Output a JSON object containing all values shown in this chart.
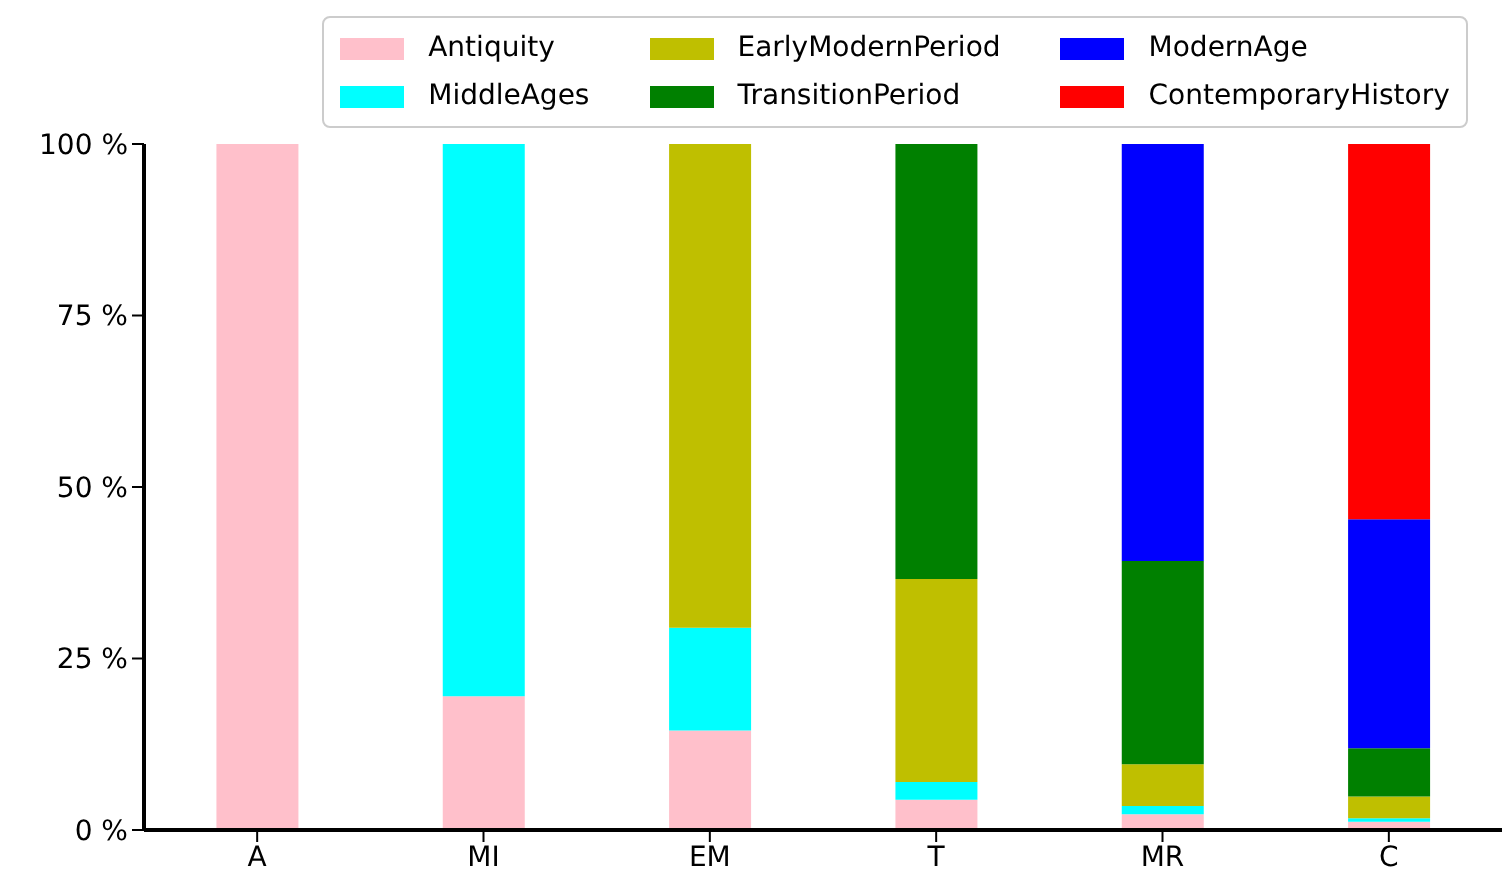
{
  "chart_data": {
    "type": "bar",
    "stacked": true,
    "categories": [
      "A",
      "MI",
      "EM",
      "T",
      "MR",
      "C"
    ],
    "series": [
      {
        "name": "Antiquity",
        "color": "#ffc0cb",
        "values": [
          100,
          19.5,
          14.5,
          4.4,
          2.3,
          1.2
        ]
      },
      {
        "name": "MiddleAges",
        "color": "#00ffff",
        "values": [
          0,
          80.5,
          15,
          2.6,
          1.2,
          0.5
        ]
      },
      {
        "name": "EarlyModernPeriod",
        "color": "#bfbf00",
        "values": [
          0,
          0,
          70.5,
          29.6,
          6.1,
          3.2
        ]
      },
      {
        "name": "TransitionPeriod",
        "color": "#008000",
        "values": [
          0,
          0,
          0,
          63.4,
          29.6,
          7
        ]
      },
      {
        "name": "ModernAge",
        "color": "#0000ff",
        "values": [
          0,
          0,
          0,
          0,
          60.8,
          33.4
        ]
      },
      {
        "name": "ContemporaryHistory",
        "color": "#ff0000",
        "values": [
          0,
          0,
          0,
          0,
          0,
          54.7
        ]
      }
    ],
    "ylim": [
      0,
      100
    ],
    "yticks": [
      {
        "value": 0,
        "label": "0 %"
      },
      {
        "value": 25,
        "label": "25 %"
      },
      {
        "value": 50,
        "label": "50 %"
      },
      {
        "value": 75,
        "label": "75 %"
      },
      {
        "value": 100,
        "label": "100 %"
      }
    ],
    "grid": false,
    "legend": "top"
  }
}
